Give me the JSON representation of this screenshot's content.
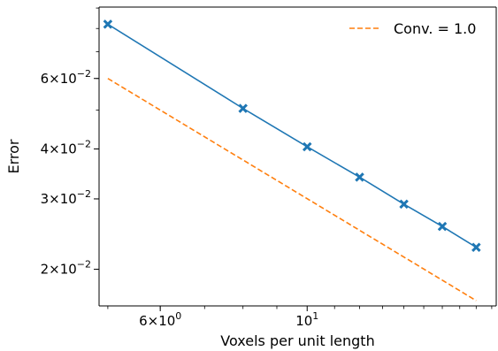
{
  "chart_data": {
    "type": "line",
    "xlabel": "Voxels per unit length",
    "ylabel": "Error",
    "xscale": "log",
    "yscale": "log",
    "xlim": [
      4.85,
      19.3
    ],
    "ylim": [
      0.0162,
      0.0905
    ],
    "x_ticks": [
      {
        "value": 6,
        "mantissa": "6",
        "base": "10",
        "exp": "0"
      },
      {
        "value": 10,
        "mantissa": "",
        "base": "10",
        "exp": "1"
      }
    ],
    "y_ticks": [
      {
        "value": 0.02,
        "mantissa": "2",
        "base": "10",
        "exp": "−2"
      },
      {
        "value": 0.03,
        "mantissa": "3",
        "base": "10",
        "exp": "−2"
      },
      {
        "value": 0.04,
        "mantissa": "4",
        "base": "10",
        "exp": "−2"
      },
      {
        "value": 0.06,
        "mantissa": "6",
        "base": "10",
        "exp": "−2"
      }
    ],
    "grid": false,
    "legend_position": "top-right",
    "series": [
      {
        "style": "solid",
        "marker": "X",
        "color": "#1f77b4",
        "x": [
          5,
          8,
          10,
          12,
          14,
          16,
          18
        ],
        "y": [
          0.082,
          0.0505,
          0.0405,
          0.034,
          0.0291,
          0.0256,
          0.0227
        ]
      },
      {
        "name": "Conv. = 1.0",
        "style": "dashed",
        "color": "#ff7f0e",
        "x": [
          5,
          18
        ],
        "y": [
          0.06,
          0.0167
        ]
      }
    ]
  }
}
